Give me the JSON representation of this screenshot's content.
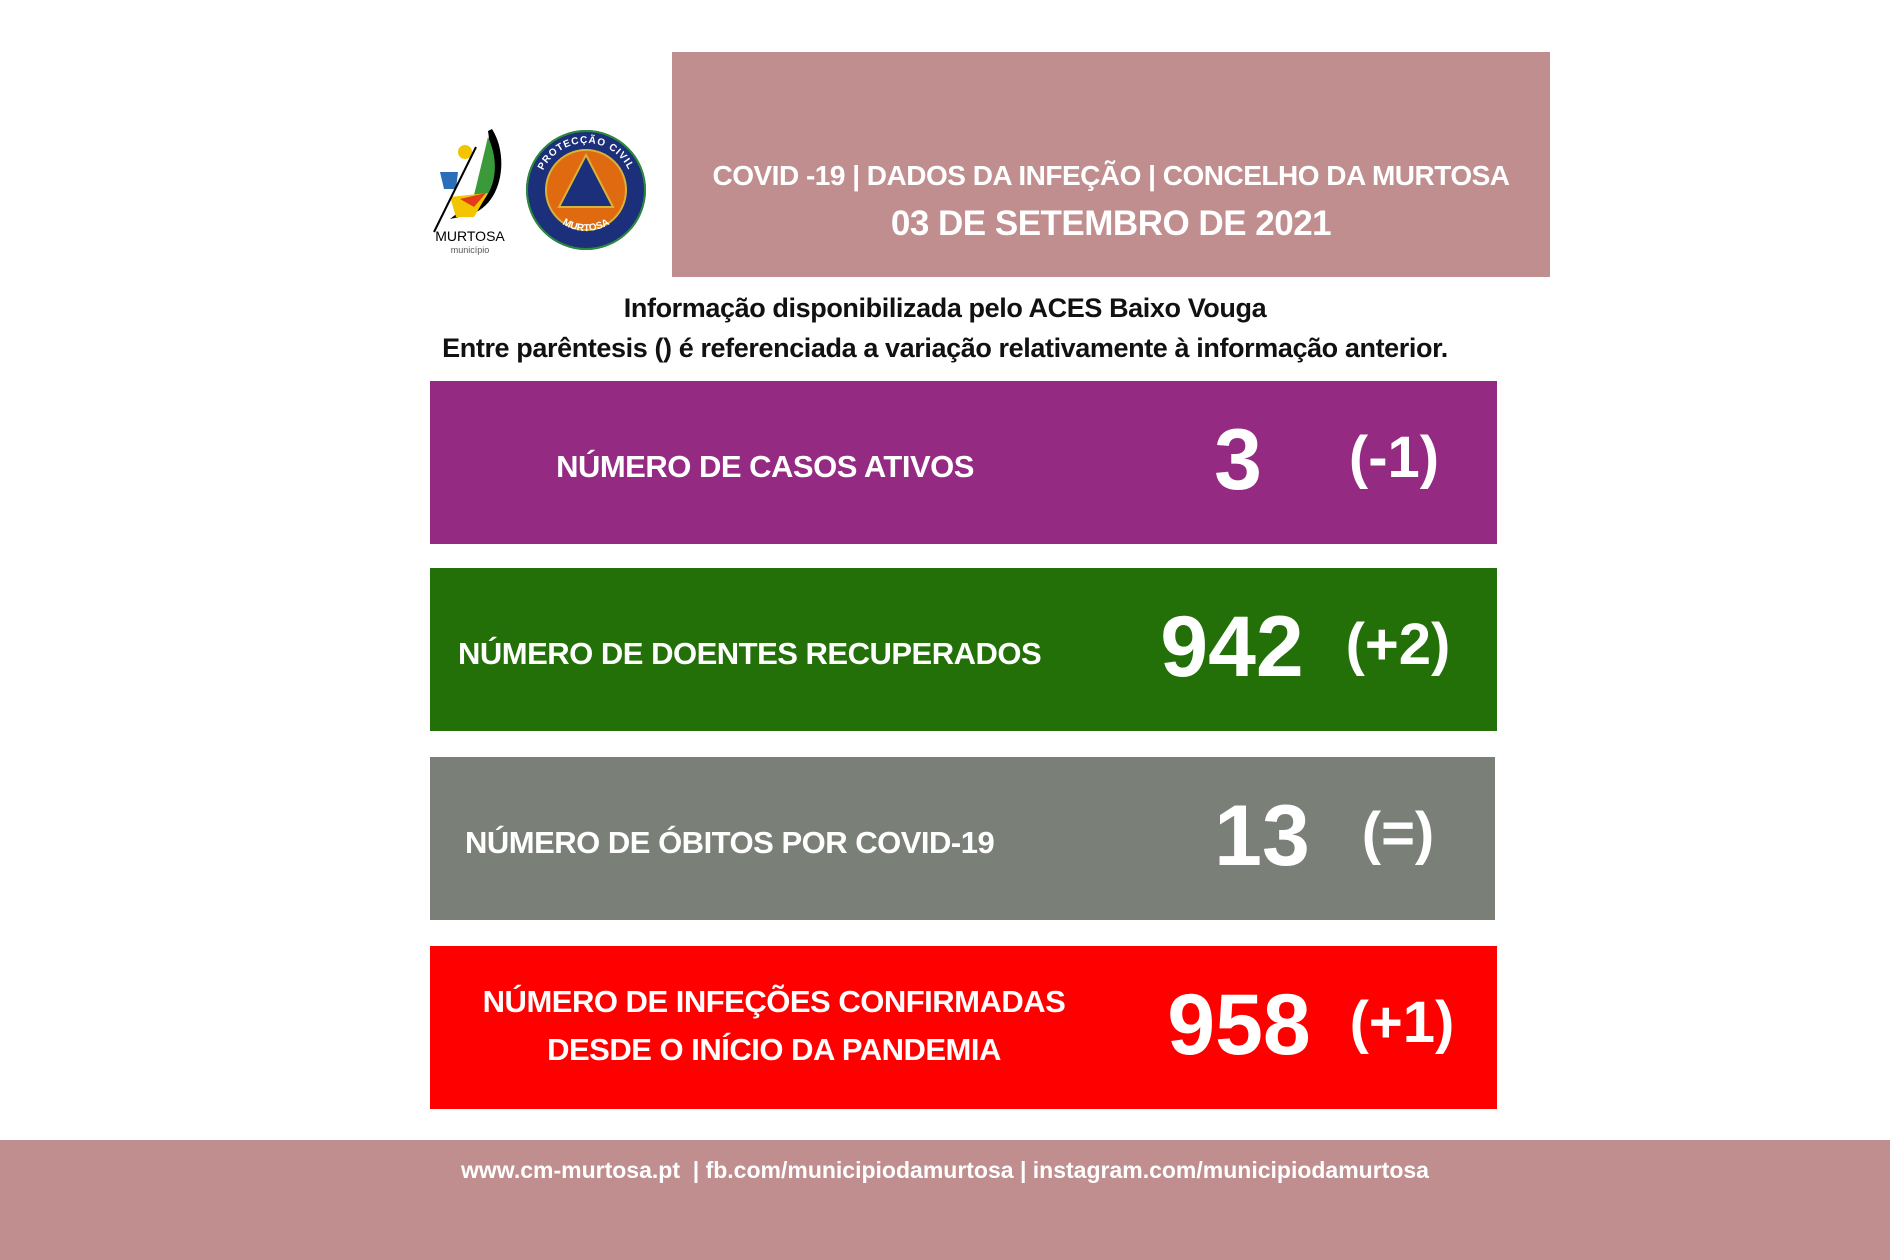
{
  "logos": {
    "municipio": {
      "name": "MURTOSA",
      "sub": "município"
    },
    "protecao_civil": {
      "top": "PROTECÇÃO CIVIL",
      "bottom": "MURTOSA"
    }
  },
  "header": {
    "title": "COVID -19 | DADOS DA INFEÇÃO | CONCELHO DA MURTOSA",
    "date": "03 DE SETEMBRO DE 2021",
    "background": "#c08e8e"
  },
  "info": {
    "line1": "Informação disponibilizada pelo ACES Baixo Vouga",
    "line2": "Entre parêntesis () é referenciada a variação relativamente à informação anterior."
  },
  "stats": [
    {
      "label": "NÚMERO DE CASOS ATIVOS",
      "value": "3",
      "change": "(-1)",
      "color": "#942a81"
    },
    {
      "label": "NÚMERO DE DOENTES RECUPERADOS",
      "value": "942",
      "change": "(+2)",
      "color": "#236f08"
    },
    {
      "label": "NÚMERO DE ÓBITOS POR COVID-19",
      "value": "13",
      "change": "(=)",
      "color": "#7a7f77"
    },
    {
      "label_line1": "NÚMERO DE INFEÇÕES CONFIRMADAS",
      "label_line2": "DESDE O INÍCIO DA PANDEMIA",
      "value": "958",
      "change": "(+1)",
      "color": "#ff0000"
    }
  ],
  "footer": {
    "text": "www.cm-murtosa.pt  | fb.com/municipiodamurtosa | instagram.com/municipiodamurtosa"
  }
}
